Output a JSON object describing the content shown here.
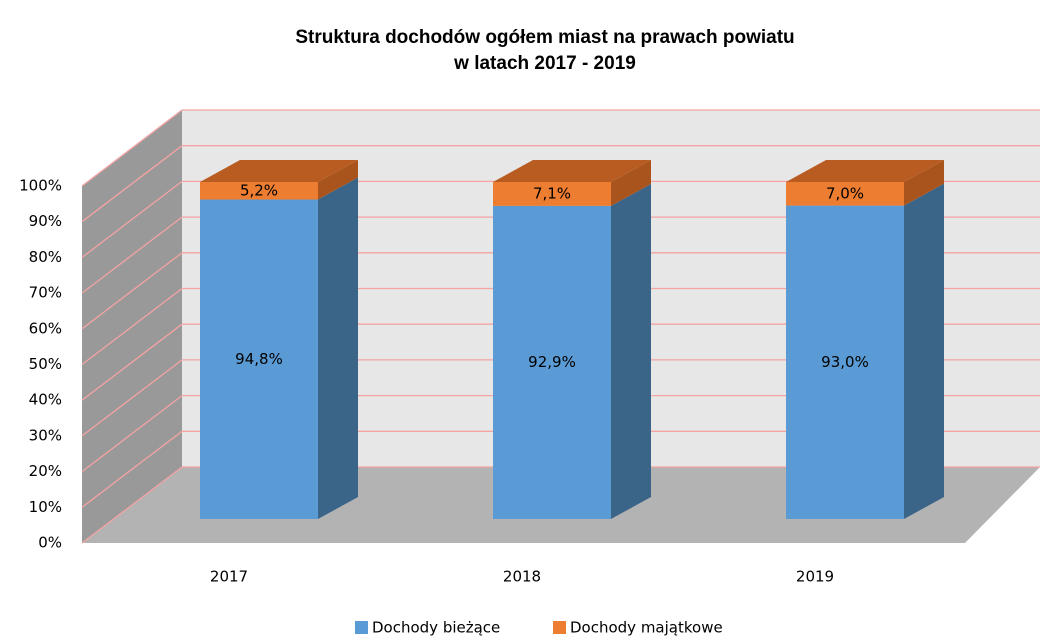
{
  "chart_data": {
    "type": "bar3d_stacked",
    "title": [
      "Struktura dochodów ogółem miast na prawach powiatu",
      "w latach 2017 - 2019"
    ],
    "categories": [
      "2017",
      "2018",
      "2019"
    ],
    "series": [
      {
        "name": "Dochody bieżące",
        "color": "#5b9bd5",
        "side_color": "#3b6489",
        "top_color": "#4a7fb0",
        "values": [
          94.8,
          92.9,
          93.0
        ],
        "value_labels": [
          "94,8%",
          "92,9%",
          "93,0%"
        ]
      },
      {
        "name": "Dochody majątkowe",
        "color": "#ed7d31",
        "side_color": "#a9541c",
        "top_color": "#b85c22",
        "values": [
          5.2,
          7.1,
          7.0
        ],
        "value_labels": [
          "5,2%",
          "7,1%",
          "7,0%"
        ]
      }
    ],
    "ylim": [
      0,
      100
    ],
    "yticks": [
      {
        "value": 0,
        "label": "0%"
      },
      {
        "value": 10,
        "label": "10%"
      },
      {
        "value": 20,
        "label": "20%"
      },
      {
        "value": 30,
        "label": "30%"
      },
      {
        "value": 40,
        "label": "40%"
      },
      {
        "value": 50,
        "label": "50%"
      },
      {
        "value": 60,
        "label": "60%"
      },
      {
        "value": 70,
        "label": "70%"
      },
      {
        "value": 80,
        "label": "80%"
      },
      {
        "value": 90,
        "label": "90%"
      },
      {
        "value": 100,
        "label": "100%"
      }
    ],
    "grid": true,
    "grid_color": "#f4a3a3",
    "legend": "bottom"
  }
}
